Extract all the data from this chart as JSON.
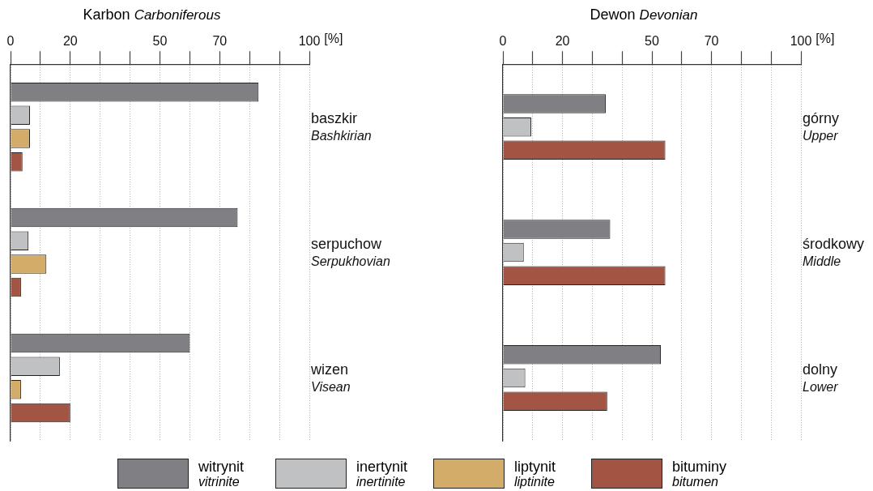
{
  "chart_data": [
    {
      "type": "bar",
      "orientation": "horizontal",
      "title": "Karbon\nCarboniferous",
      "xlabel": "[%]",
      "categories": [
        "baszkir\nBashkirian",
        "serpuchow\nSerpukhovian",
        "wizen\nVisean"
      ],
      "series": [
        {
          "name": "witrynit\nvitrinite",
          "color": "#808084",
          "values": [
            83,
            76,
            60
          ]
        },
        {
          "name": "inertynit\ninertinite",
          "color": "#c0c1c3",
          "values": [
            6.5,
            6,
            16.5
          ]
        },
        {
          "name": "liptynit\nliptinite",
          "color": "#d4ac69",
          "values": [
            6.5,
            12,
            3.5
          ]
        },
        {
          "name": "bituminy\nbitumen",
          "color": "#a35543",
          "values": [
            4,
            3.5,
            20
          ]
        }
      ],
      "xlim": [
        0,
        100
      ],
      "xticks": [
        0,
        {
          "value": 10,
          "label": null
        },
        20,
        {
          "value": 30,
          "label": null
        },
        {
          "value": 40,
          "label": null
        },
        50,
        {
          "value": 60,
          "label": null
        },
        70,
        {
          "value": 80,
          "label": null
        },
        {
          "value": 90,
          "label": null
        },
        100
      ],
      "grid": "x",
      "legend": "bottom"
    },
    {
      "type": "bar",
      "orientation": "horizontal",
      "title": "Dewon\nDevonian",
      "xlabel": "[%]",
      "categories": [
        "górny\nUpper",
        "środkowy\nMiddle",
        "dolny\nLower"
      ],
      "series": [
        {
          "color": "#808084",
          "values": [
            34.5,
            36,
            53
          ]
        },
        {
          "color": "#c0c1c3",
          "values": [
            9.5,
            7,
            7.5
          ]
        },
        {
          "color": "#a35543",
          "values": [
            54.5,
            54.5,
            35
          ]
        }
      ],
      "xlim": [
        0,
        100
      ],
      "xticks": [
        0,
        {
          "value": 10,
          "label": null
        },
        20,
        {
          "value": 30,
          "label": null
        },
        {
          "value": 40,
          "label": null
        },
        50,
        {
          "value": 60,
          "label": null
        },
        70,
        {
          "value": 80,
          "label": null
        },
        {
          "value": 90,
          "label": null
        },
        100
      ],
      "grid": "x"
    }
  ]
}
